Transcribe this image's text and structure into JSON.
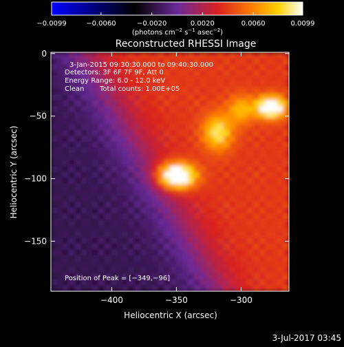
{
  "chart_data": {
    "type": "heatmap",
    "title": "Reconstructed RHESSI Image",
    "xlabel": "Heliocentric X (arcsec)",
    "ylabel": "Heliocentric Y (arcsec)",
    "xlim": [
      -447,
      -263
    ],
    "ylim": [
      -190,
      1
    ],
    "xticks": [
      -400,
      -350,
      -300
    ],
    "xtick_labels": [
      "−400",
      "−350",
      "−300"
    ],
    "yticks": [
      0,
      -50,
      -100,
      -150
    ],
    "ytick_labels": [
      "0",
      "−50",
      "−100",
      "−150"
    ],
    "colorbar": {
      "min": -0.0099,
      "max": 0.0099,
      "ticks": [
        -0.0099,
        -0.006,
        -0.002,
        0.002,
        0.006,
        0.0099
      ],
      "tick_labels": [
        "−0.0099",
        "−0.0060",
        "−0.0020",
        "0.0020",
        "0.0060",
        "0.0099"
      ],
      "units_base": "(photons cm",
      "units_sup1": "−2",
      "units_mid": " s",
      "units_sup2": "−1",
      "units_mid2": " asec",
      "units_sup3": "−2",
      "units_end": ")",
      "colors": [
        "#0000ff",
        "#000000",
        "#6a2a9a",
        "#d82020",
        "#ff8000",
        "#ffd000",
        "#ffffff"
      ]
    },
    "sources": [
      {
        "x": -350,
        "y": -98,
        "intensity": 0.0099,
        "sx": 10,
        "sy": 7
      },
      {
        "x": -277,
        "y": -43,
        "intensity": 0.0085,
        "sx": 8,
        "sy": 6
      },
      {
        "x": -318,
        "y": -63,
        "intensity": 0.005,
        "sx": 8,
        "sy": 10
      },
      {
        "x": -300,
        "y": -45,
        "intensity": 0.0035,
        "sx": 7,
        "sy": 8
      }
    ],
    "annotations": {
      "time_range": "3-Jan-2015 09:30:30.000 to 09:40:30.000",
      "detectors": "Detectors: 3F 6F 7F 9F, Att 0",
      "energy": "Energy Range: 6.0 - 12.0 keV",
      "clean": "Clean",
      "total_counts": "Total counts: 1.00E+05",
      "peak": "Position of Peak = [−349,−96]"
    }
  },
  "footer": {
    "timestamp": "3-Jul-2017 03:45"
  }
}
